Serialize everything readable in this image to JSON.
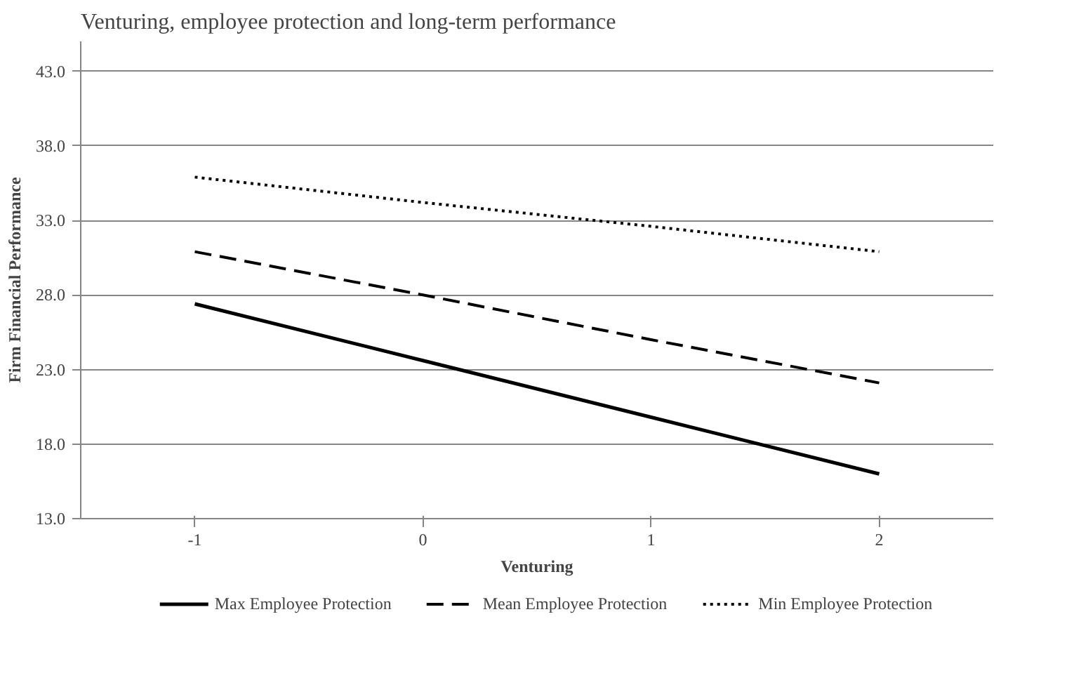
{
  "chart_data": {
    "type": "line",
    "title": "Venturing, employee protection and long-term performance",
    "xlabel": "Venturing",
    "ylabel": "Firm Financial Performance",
    "categories": [
      "-1",
      "0",
      "1",
      "2"
    ],
    "series": [
      {
        "name": "Max Employee Protection",
        "color": "#000000",
        "line_style": "solid",
        "values": [
          27.4,
          23.6,
          19.8,
          16.0
        ]
      },
      {
        "name": "Mean Employee Protection",
        "color": "#000000",
        "line_style": "dashed",
        "values": [
          30.9,
          28.0,
          25.0,
          22.1
        ]
      },
      {
        "name": "Min Employee Protection",
        "color": "#000000",
        "line_style": "dotted",
        "values": [
          35.9,
          34.2,
          32.6,
          30.9
        ]
      }
    ],
    "ylim": [
      13,
      45
    ],
    "yticks": [
      {
        "value": 13,
        "label": "13.0"
      },
      {
        "value": 18,
        "label": "18.0"
      },
      {
        "value": 23,
        "label": "23.0"
      },
      {
        "value": 28,
        "label": "28.0"
      },
      {
        "value": 33,
        "label": "33.0"
      },
      {
        "value": 38,
        "label": "38.0"
      },
      {
        "value": 43,
        "label": "43.0"
      }
    ],
    "grid": "y",
    "legend": "bottom",
    "marker": "none"
  }
}
